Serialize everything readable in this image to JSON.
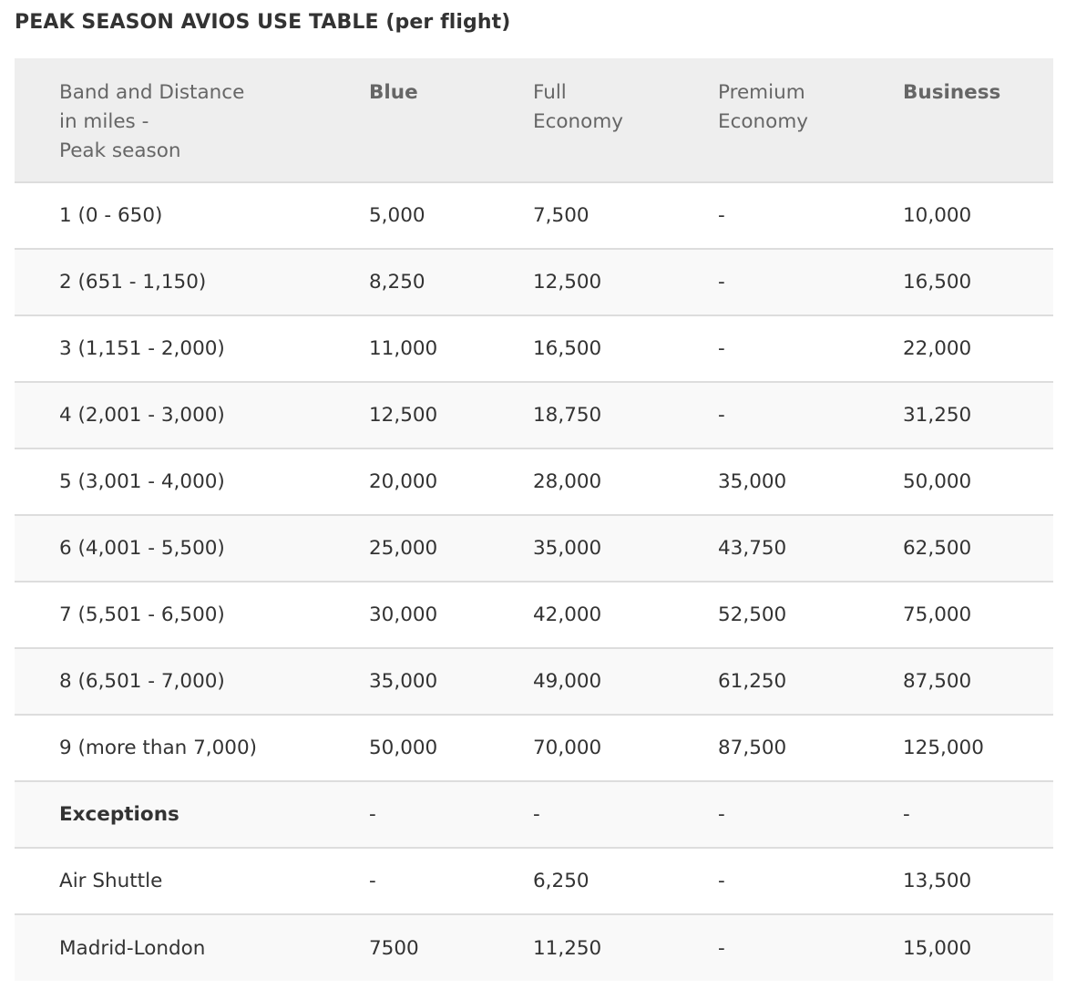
{
  "title": "PEAK SEASON AVIOS USE TABLE (per flight)",
  "table": {
    "headers": [
      {
        "lines": [
          "Band and Distance",
          "in miles -",
          "Peak season"
        ],
        "bold": false
      },
      {
        "lines": [
          "Blue"
        ],
        "bold": true
      },
      {
        "lines": [
          "Full",
          "Economy"
        ],
        "bold": false
      },
      {
        "lines": [
          "Premium",
          "Economy"
        ],
        "bold": false
      },
      {
        "lines": [
          "Business"
        ],
        "bold": true
      }
    ],
    "rows": [
      [
        "1 (0 - 650)",
        "5,000",
        "7,500",
        "-",
        "10,000"
      ],
      [
        "2 (651 - 1,150)",
        "8,250",
        "12,500",
        "-",
        "16,500"
      ],
      [
        "3 (1,151 - 2,000)",
        "11,000",
        "16,500",
        "-",
        "22,000"
      ],
      [
        "4 (2,001 - 3,000)",
        "12,500",
        "18,750",
        "-",
        "31,250"
      ],
      [
        "5 (3,001 - 4,000)",
        "20,000",
        "28,000",
        "35,000",
        "50,000"
      ],
      [
        "6 (4,001 - 5,500)",
        "25,000",
        "35,000",
        "43,750",
        "62,500"
      ],
      [
        "7 (5,501 - 6,500)",
        "30,000",
        "42,000",
        "52,500",
        "75,000"
      ],
      [
        "8 (6,501 - 7,000)",
        "35,000",
        "49,000",
        "61,250",
        "87,500"
      ],
      [
        "9 (more than 7,000)",
        "50,000",
        "70,000",
        "87,500",
        "125,000"
      ],
      [
        "Exceptions",
        "-",
        "-",
        "-",
        "-"
      ],
      [
        "Air Shuttle",
        "-",
        "6,250",
        "-",
        "13,500"
      ],
      [
        "Madrid-London",
        "7500",
        "11,250",
        "-",
        "15,000"
      ]
    ],
    "bold_row_labels": [
      "Exceptions"
    ]
  },
  "colors": {
    "header_bg": "#eeeeee",
    "row_alt_bg": "#f9f9f9",
    "border": "#dddddd",
    "text": "#333333",
    "header_text": "#666666"
  }
}
